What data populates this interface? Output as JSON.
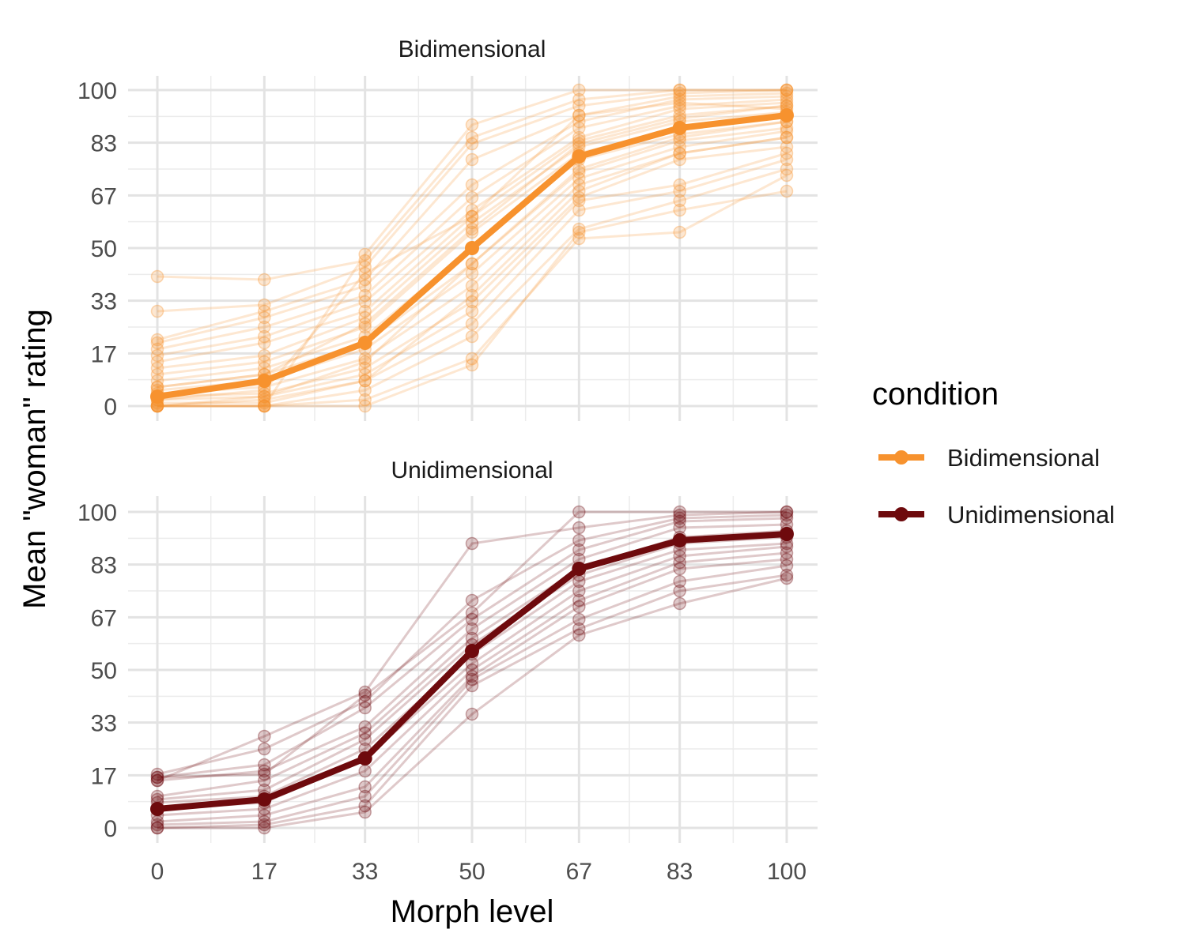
{
  "chart_data": {
    "type": "line",
    "xlabel": "Morph level",
    "ylabel": "Mean \"woman\" rating",
    "x": [
      0,
      17,
      33,
      50,
      67,
      83,
      100
    ],
    "x_tick_labels": [
      "0",
      "17",
      "33",
      "50",
      "67",
      "83",
      "100"
    ],
    "y_tick_labels": [
      "0",
      "17",
      "33",
      "50",
      "67",
      "83",
      "100"
    ],
    "y_ticks": [
      0,
      16.67,
      33.33,
      50,
      66.67,
      83.33,
      100
    ],
    "xlim": [
      -10,
      108
    ],
    "ylim": [
      -5,
      105
    ],
    "grid": true,
    "legend": {
      "title": "condition",
      "position": "right"
    },
    "panels": [
      {
        "title": "Bidimensional",
        "color": "#F7922E",
        "mean": {
          "name": "Bidimensional",
          "values": [
            3,
            8,
            20,
            50,
            79,
            88,
            92
          ]
        },
        "participants": [
          [
            0,
            0,
            0,
            13,
            55,
            62,
            68
          ],
          [
            0,
            0,
            2,
            15,
            53,
            55,
            73
          ],
          [
            0,
            0,
            5,
            22,
            56,
            65,
            75
          ],
          [
            0,
            2,
            8,
            26,
            62,
            68,
            78
          ],
          [
            2,
            3,
            10,
            30,
            65,
            70,
            80
          ],
          [
            3,
            4,
            12,
            33,
            66,
            78,
            82
          ],
          [
            4,
            6,
            15,
            38,
            70,
            80,
            85
          ],
          [
            5,
            8,
            18,
            42,
            72,
            82,
            87
          ],
          [
            6,
            10,
            20,
            45,
            74,
            84,
            88
          ],
          [
            8,
            12,
            22,
            50,
            78,
            86,
            90
          ],
          [
            10,
            14,
            25,
            55,
            80,
            88,
            92
          ],
          [
            12,
            16,
            28,
            58,
            82,
            90,
            93
          ],
          [
            14,
            20,
            30,
            60,
            84,
            92,
            95
          ],
          [
            16,
            22,
            33,
            62,
            85,
            94,
            96
          ],
          [
            18,
            25,
            35,
            66,
            88,
            95,
            97
          ],
          [
            20,
            28,
            38,
            70,
            90,
            97,
            98
          ],
          [
            21,
            30,
            40,
            78,
            92,
            98,
            99
          ],
          [
            30,
            32,
            44,
            83,
            95,
            99,
            100
          ],
          [
            41,
            40,
            46,
            85,
            97,
            100,
            100
          ],
          [
            0,
            0,
            48,
            89,
            100,
            100,
            100
          ],
          [
            2,
            5,
            42,
            60,
            92,
            96,
            94
          ],
          [
            1,
            1,
            8,
            35,
            68,
            80,
            85
          ],
          [
            0,
            3,
            14,
            45,
            75,
            85,
            90
          ],
          [
            6,
            10,
            26,
            56,
            83,
            91,
            95
          ]
        ]
      },
      {
        "title": "Unidimensional",
        "color": "#6E0A0D",
        "mean": {
          "name": "Unidimensional",
          "values": [
            6,
            9,
            22,
            56,
            82,
            91,
            93
          ]
        },
        "participants": [
          [
            0,
            0,
            5,
            36,
            61,
            71,
            79
          ],
          [
            0,
            1,
            7,
            45,
            63,
            75,
            80
          ],
          [
            1,
            2,
            10,
            47,
            66,
            78,
            83
          ],
          [
            2,
            4,
            13,
            48,
            70,
            82,
            85
          ],
          [
            4,
            6,
            18,
            50,
            72,
            84,
            87
          ],
          [
            6,
            8,
            22,
            52,
            75,
            86,
            89
          ],
          [
            8,
            10,
            25,
            55,
            78,
            88,
            90
          ],
          [
            9,
            12,
            28,
            58,
            80,
            90,
            92
          ],
          [
            10,
            15,
            30,
            60,
            82,
            92,
            94
          ],
          [
            15,
            18,
            32,
            63,
            85,
            95,
            96
          ],
          [
            16,
            20,
            38,
            66,
            88,
            97,
            98
          ],
          [
            17,
            25,
            40,
            72,
            91,
            98,
            99
          ],
          [
            15,
            29,
            43,
            90,
            95,
            99,
            100
          ],
          [
            16,
            17,
            42,
            68,
            100,
            100,
            100
          ]
        ]
      }
    ]
  }
}
